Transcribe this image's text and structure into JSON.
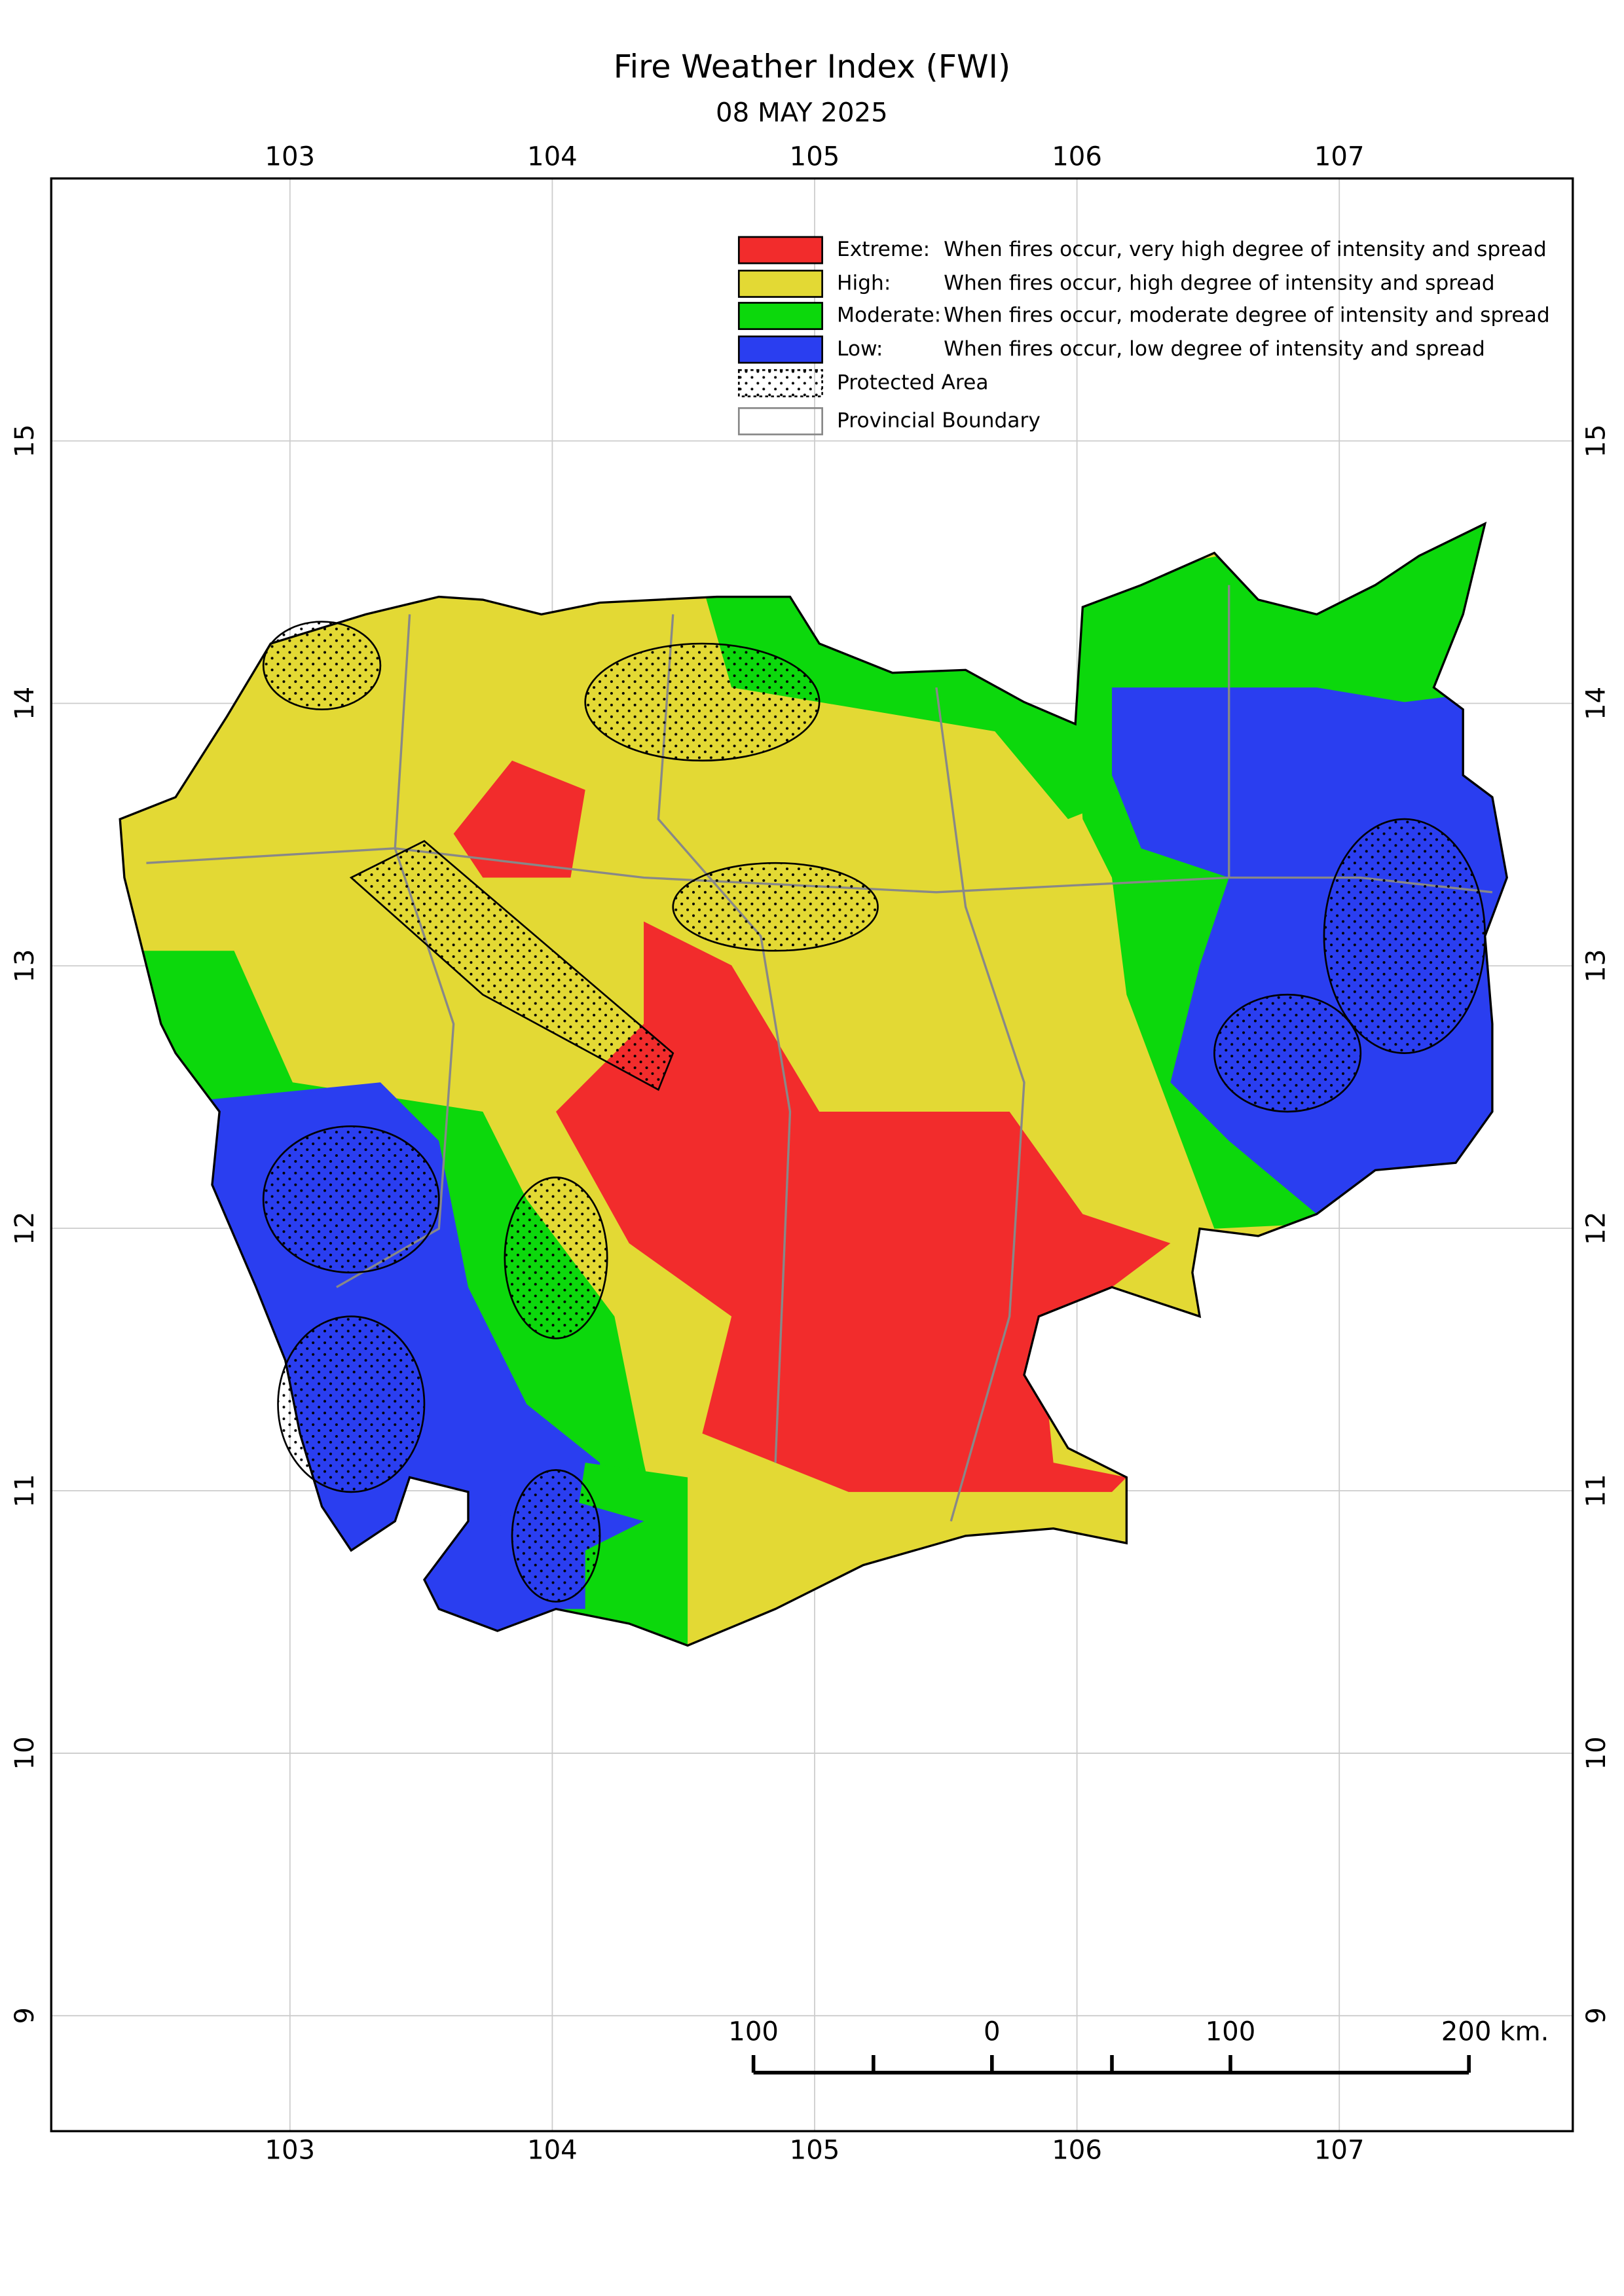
{
  "title": "Fire Weather Index (FWI)",
  "date": "08 MAY 2025",
  "map": {
    "xlim": [
      102.09,
      107.89
    ],
    "ylim": [
      8.56,
      16.0
    ],
    "xticks": [
      103,
      104,
      105,
      106,
      107
    ],
    "yticks": [
      9,
      10,
      11,
      12,
      13,
      14,
      15
    ],
    "grid": true
  },
  "legend": [
    {
      "label": "Extreme:",
      "description": "When fires occur, very high degree of intensity and spread",
      "color": "#f22c2c"
    },
    {
      "label": "High:",
      "description": "When fires occur, high degree of intensity and spread",
      "color": "#e3d934"
    },
    {
      "label": "Moderate:",
      "description": "When fires occur, moderate degree of intensity and spread",
      "color": "#0cd80c"
    },
    {
      "label": "Low:",
      "description": "When fires occur, low degree of intensity and spread",
      "color": "#2a3ef0"
    },
    {
      "label": "Protected Area"
    },
    {
      "label": "Provincial Boundary"
    }
  ],
  "scale_bar": {
    "labels": [
      "100",
      "0",
      "100",
      "200 km."
    ]
  }
}
